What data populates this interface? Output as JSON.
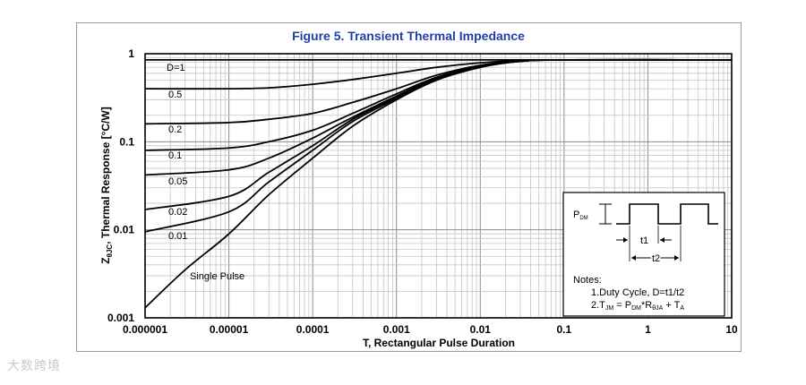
{
  "chart_data": {
    "type": "line",
    "title": "Figure 5. Transient Thermal Impedance",
    "xlabel": "T, Rectangular Pulse Duration",
    "ylabel_parts": {
      "z": "Z",
      "sub": "θJC",
      "rest": ", Thermal Response [°C/W]"
    },
    "x_scale": "log",
    "y_scale": "log",
    "xlim": [
      1e-06,
      10
    ],
    "ylim": [
      0.001,
      1
    ],
    "grid": true,
    "x_ticks": [
      "0.000001",
      "0.00001",
      "0.0001",
      "0.001",
      "0.01",
      "0.1",
      "1",
      "10"
    ],
    "y_ticks": [
      "0.001",
      "0.01",
      "0.1",
      "1"
    ],
    "series": [
      {
        "name": "D=1",
        "x": [
          1e-06,
          1e-05,
          0.0001,
          0.001,
          0.01,
          0.1,
          1,
          10
        ],
        "y": [
          0.85,
          0.85,
          0.85,
          0.85,
          0.85,
          0.85,
          0.85,
          0.85
        ]
      },
      {
        "name": "0.5",
        "x": [
          1e-06,
          1e-05,
          3e-05,
          0.0001,
          0.0003,
          0.001,
          0.003,
          0.01,
          0.03,
          0.1,
          10
        ],
        "y": [
          0.4,
          0.4,
          0.41,
          0.45,
          0.51,
          0.6,
          0.7,
          0.79,
          0.84,
          0.85,
          0.85
        ]
      },
      {
        "name": "0.2",
        "x": [
          1e-06,
          1e-05,
          3e-05,
          0.0001,
          0.0003,
          0.001,
          0.003,
          0.01,
          0.03,
          0.1,
          10
        ],
        "y": [
          0.16,
          0.165,
          0.18,
          0.21,
          0.28,
          0.4,
          0.57,
          0.74,
          0.83,
          0.85,
          0.85
        ]
      },
      {
        "name": "0.1",
        "x": [
          1e-06,
          1e-05,
          3e-05,
          0.0001,
          0.0003,
          0.001,
          0.003,
          0.01,
          0.03,
          0.1,
          10
        ],
        "y": [
          0.08,
          0.085,
          0.1,
          0.135,
          0.21,
          0.35,
          0.54,
          0.72,
          0.82,
          0.85,
          0.85
        ]
      },
      {
        "name": "0.05",
        "x": [
          1e-06,
          1e-05,
          3e-05,
          0.0001,
          0.0003,
          0.001,
          0.003,
          0.01,
          0.03,
          0.1,
          10
        ],
        "y": [
          0.042,
          0.048,
          0.065,
          0.11,
          0.19,
          0.33,
          0.53,
          0.72,
          0.82,
          0.85,
          0.85
        ]
      },
      {
        "name": "0.02",
        "x": [
          1e-06,
          1e-05,
          3e-05,
          0.0001,
          0.0003,
          0.001,
          0.003,
          0.01,
          0.03,
          0.1,
          10
        ],
        "y": [
          0.017,
          0.024,
          0.045,
          0.09,
          0.18,
          0.32,
          0.52,
          0.71,
          0.82,
          0.85,
          0.85
        ]
      },
      {
        "name": "0.01",
        "x": [
          1e-06,
          1e-05,
          3e-05,
          0.0001,
          0.0003,
          0.001,
          0.003,
          0.01,
          0.03,
          0.1,
          10
        ],
        "y": [
          0.0095,
          0.016,
          0.035,
          0.08,
          0.17,
          0.31,
          0.52,
          0.71,
          0.82,
          0.85,
          0.85
        ]
      },
      {
        "name": "Single Pulse",
        "x": [
          1e-06,
          3e-06,
          1e-05,
          3e-05,
          0.0001,
          0.0003,
          0.001,
          0.003,
          0.01,
          0.03,
          0.1,
          10
        ],
        "y": [
          0.0013,
          0.0035,
          0.009,
          0.025,
          0.065,
          0.15,
          0.3,
          0.5,
          0.7,
          0.82,
          0.85,
          0.85
        ]
      }
    ],
    "curve_labels": [
      "D=1",
      "0.5",
      "0.2",
      "0.1",
      "0.05",
      "0.02",
      "0.01",
      "Single Pulse"
    ],
    "inset": {
      "pdm": {
        "p": "P",
        "sub": "DM"
      },
      "t1": "t1",
      "t2": "t2",
      "notes_title": "Notes:",
      "note1": "1.Duty  Cycle, D=t1/t2",
      "note2": {
        "a": "2.T",
        "a_sub": "JM",
        "b": " = P",
        "b_sub": "DM",
        "c": "*R",
        "c_sub": "θJA",
        "d": " + T",
        "d_sub": "A"
      }
    }
  },
  "watermark": "大数跨境"
}
